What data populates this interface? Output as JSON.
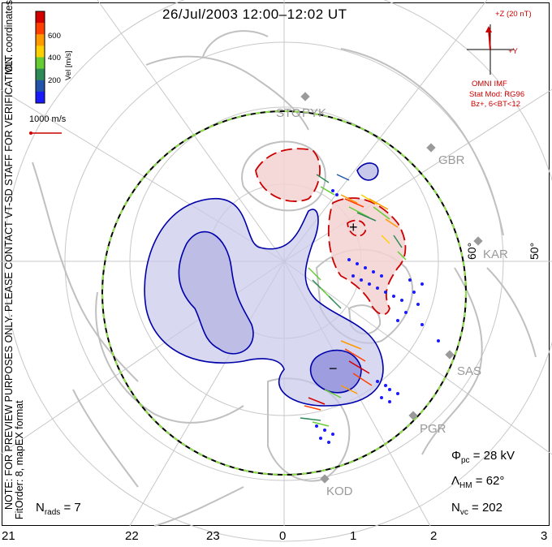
{
  "title": "26/Jul/2003 12:00–12:02 UT",
  "note_left": "NOTE: FOR PREVIEW PURPOSES ONLY. PLEASE CONTACT VT-SD STAFF FOR VERIFICATION.",
  "fit_info": "FitOrder: 8, mapEX format",
  "coord_label": "MLT coordinates",
  "colorbar": {
    "title": "Vel [m/s]",
    "ticks": [
      "600",
      "400",
      "200"
    ],
    "colors": [
      "#d40000",
      "#ff4000",
      "#ff9900",
      "#ffd000",
      "#66cc33",
      "#2e8b57",
      "#2255aa",
      "#1a1aff"
    ]
  },
  "scale_vector": "1000 m/s",
  "imf": {
    "z_label": "+Z (20 nT)",
    "y_label": "+Y",
    "source": "OMNI IMF",
    "model_line1": "Stat Mod: RG96",
    "model_line2": "Bz+, 6<BT<12"
  },
  "stations": [
    "STO",
    "PYK",
    "GBR",
    "KAR",
    "SAS",
    "PGR",
    "KOD"
  ],
  "latitudes": [
    "60°",
    "50°"
  ],
  "stats": {
    "phi_pc": "28 kV",
    "lambda_hm": "62°",
    "n_vc": "202",
    "n_rads": "7"
  },
  "mlt_ticks": [
    "21",
    "22",
    "23",
    "0",
    "1",
    "2",
    "3"
  ],
  "contour_signs": {
    "plus": "+",
    "minus": "−"
  },
  "colors": {
    "neg_fill": "#c8c8ea",
    "neg_line": "#0000aa",
    "pos_fill": "#f3d2d2",
    "pos_line": "#cc0000",
    "coast": "#c0c0c0",
    "grid": "#c8c8c8"
  }
}
